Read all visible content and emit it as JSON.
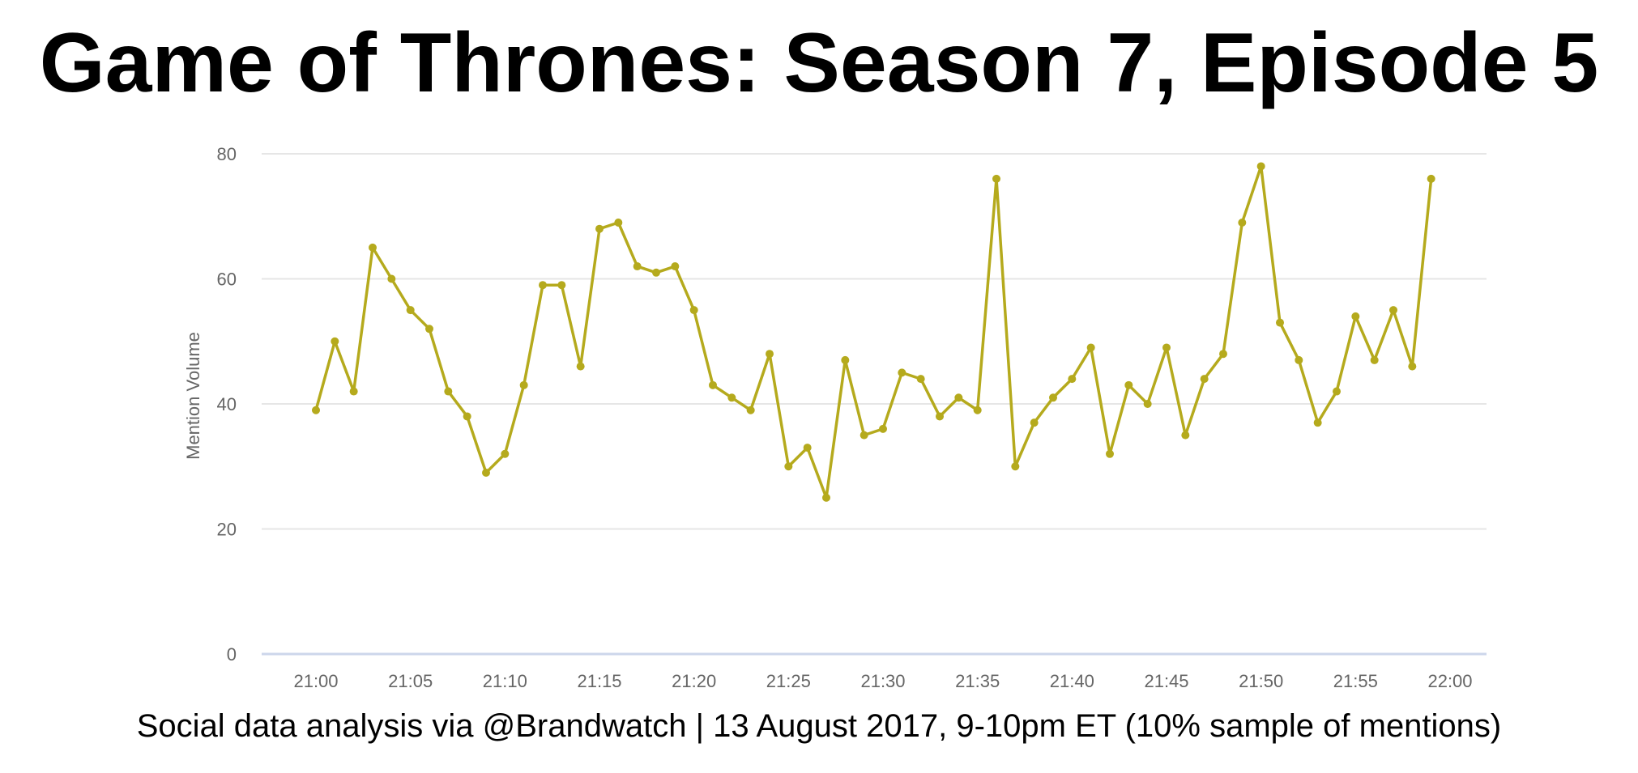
{
  "chart_data": {
    "type": "line",
    "title": "Game of Thrones: Season 7, Episode 5",
    "caption": "Social data analysis via @Brandwatch | 13 August 2017, 9-10pm ET (10% sample of mentions)",
    "xlabel": "",
    "ylabel": "Mention Volume",
    "x_tick_labels": [
      "21:00",
      "21:05",
      "21:10",
      "21:15",
      "21:20",
      "21:25",
      "21:30",
      "21:35",
      "21:40",
      "21:45",
      "21:50",
      "21:55",
      "22:00"
    ],
    "y_ticks": [
      0,
      20,
      40,
      60,
      80
    ],
    "ylim": [
      0,
      80
    ],
    "xlim": [
      "21:00",
      "22:00"
    ],
    "grid": true,
    "legend": "none",
    "series": [
      {
        "color": "#b5aa1d",
        "x": [
          "21:00",
          "21:01",
          "21:02",
          "21:03",
          "21:04",
          "21:05",
          "21:06",
          "21:07",
          "21:08",
          "21:09",
          "21:10",
          "21:11",
          "21:12",
          "21:13",
          "21:14",
          "21:15",
          "21:16",
          "21:17",
          "21:18",
          "21:19",
          "21:20",
          "21:21",
          "21:22",
          "21:23",
          "21:24",
          "21:25",
          "21:26",
          "21:27",
          "21:28",
          "21:29",
          "21:30",
          "21:31",
          "21:32",
          "21:33",
          "21:34",
          "21:35",
          "21:36",
          "21:37",
          "21:38",
          "21:39",
          "21:40",
          "21:41",
          "21:42",
          "21:43",
          "21:44",
          "21:45",
          "21:46",
          "21:47",
          "21:48",
          "21:49",
          "21:50",
          "21:51",
          "21:52",
          "21:53",
          "21:54",
          "21:55",
          "21:56",
          "21:57",
          "21:58",
          "21:59"
        ],
        "values": [
          39,
          50,
          42,
          65,
          60,
          55,
          52,
          42,
          38,
          29,
          32,
          43,
          59,
          59,
          46,
          68,
          69,
          62,
          61,
          62,
          55,
          43,
          41,
          39,
          48,
          30,
          33,
          25,
          47,
          35,
          36,
          45,
          44,
          38,
          41,
          39,
          76,
          30,
          37,
          41,
          44,
          49,
          32,
          43,
          40,
          49,
          35,
          44,
          48,
          69,
          78,
          53,
          47,
          37,
          42,
          54,
          47,
          55,
          46,
          76
        ]
      }
    ]
  },
  "colors": {
    "line": "#b5aa1d",
    "grid": "#e6e6e6",
    "axis": "#ccd6eb",
    "tick_text": "#666666"
  }
}
